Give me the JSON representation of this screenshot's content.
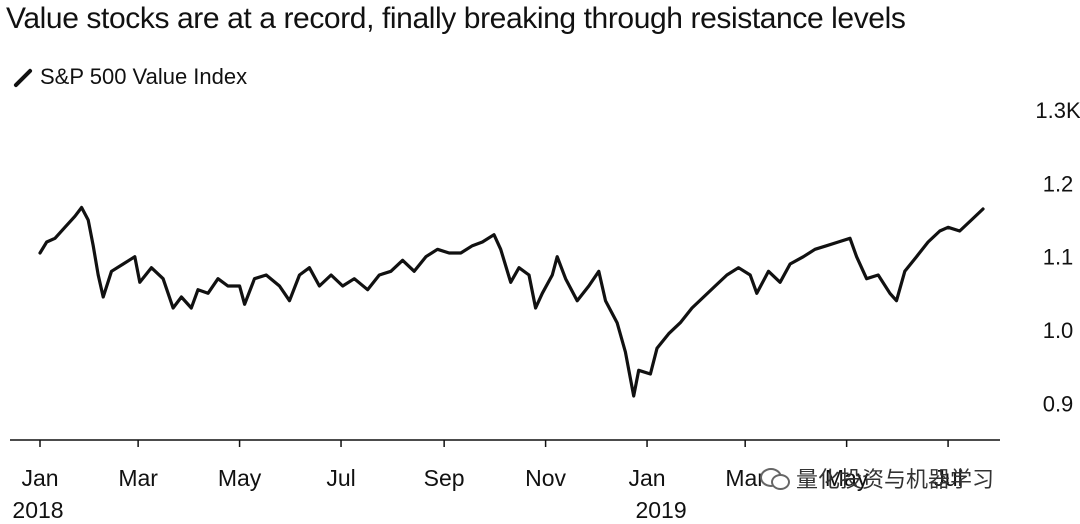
{
  "chart_data": {
    "type": "line",
    "title": "Value stocks are at a record, finally breaking through resistance levels",
    "legend": {
      "position": "top-left",
      "entries": [
        "S&P 500 Value Index"
      ]
    },
    "yaxis": {
      "position": "right",
      "ylim": [
        0.88,
        1.3
      ],
      "ticks": [
        0.9,
        1.0,
        1.1,
        1.2,
        1.3
      ],
      "tick_labels": [
        "0.9",
        "1.0",
        "1.1",
        "1.2",
        "1.3K"
      ]
    },
    "xaxis": {
      "range": [
        "2018-01-01",
        "2019-07-25"
      ],
      "ticks": [
        {
          "date": "2018-01-01",
          "label": "Jan",
          "year": "2018"
        },
        {
          "date": "2018-03-01",
          "label": "Mar",
          "year": ""
        },
        {
          "date": "2018-05-01",
          "label": "May",
          "year": ""
        },
        {
          "date": "2018-07-01",
          "label": "Jul",
          "year": ""
        },
        {
          "date": "2018-09-01",
          "label": "Sep",
          "year": ""
        },
        {
          "date": "2018-11-01",
          "label": "Nov",
          "year": ""
        },
        {
          "date": "2019-01-01",
          "label": "Jan",
          "year": "2019"
        },
        {
          "date": "2019-03-01",
          "label": "Mar",
          "year": ""
        },
        {
          "date": "2019-05-01",
          "label": "May",
          "year": ""
        },
        {
          "date": "2019-07-01",
          "label": "Jul",
          "year": ""
        }
      ]
    },
    "grid": false,
    "series": [
      {
        "name": "S&P 500 Value Index",
        "color": "#111111",
        "points": [
          [
            "2018-01-01",
            1.105
          ],
          [
            "2018-01-05",
            1.12
          ],
          [
            "2018-01-10",
            1.125
          ],
          [
            "2018-01-16",
            1.14
          ],
          [
            "2018-01-22",
            1.155
          ],
          [
            "2018-01-26",
            1.167
          ],
          [
            "2018-01-30",
            1.15
          ],
          [
            "2018-02-02",
            1.115
          ],
          [
            "2018-02-05",
            1.075
          ],
          [
            "2018-02-08",
            1.045
          ],
          [
            "2018-02-13",
            1.08
          ],
          [
            "2018-02-20",
            1.09
          ],
          [
            "2018-02-27",
            1.1
          ],
          [
            "2018-03-02",
            1.065
          ],
          [
            "2018-03-09",
            1.085
          ],
          [
            "2018-03-16",
            1.07
          ],
          [
            "2018-03-22",
            1.03
          ],
          [
            "2018-03-27",
            1.045
          ],
          [
            "2018-04-02",
            1.03
          ],
          [
            "2018-04-06",
            1.055
          ],
          [
            "2018-04-12",
            1.05
          ],
          [
            "2018-04-18",
            1.07
          ],
          [
            "2018-04-24",
            1.06
          ],
          [
            "2018-05-01",
            1.06
          ],
          [
            "2018-05-04",
            1.035
          ],
          [
            "2018-05-10",
            1.07
          ],
          [
            "2018-05-17",
            1.075
          ],
          [
            "2018-05-25",
            1.06
          ],
          [
            "2018-05-31",
            1.04
          ],
          [
            "2018-06-06",
            1.075
          ],
          [
            "2018-06-12",
            1.085
          ],
          [
            "2018-06-18",
            1.06
          ],
          [
            "2018-06-25",
            1.075
          ],
          [
            "2018-07-02",
            1.06
          ],
          [
            "2018-07-09",
            1.07
          ],
          [
            "2018-07-17",
            1.055
          ],
          [
            "2018-07-24",
            1.075
          ],
          [
            "2018-07-31",
            1.08
          ],
          [
            "2018-08-07",
            1.095
          ],
          [
            "2018-08-14",
            1.08
          ],
          [
            "2018-08-21",
            1.1
          ],
          [
            "2018-08-28",
            1.11
          ],
          [
            "2018-09-04",
            1.105
          ],
          [
            "2018-09-11",
            1.105
          ],
          [
            "2018-09-18",
            1.115
          ],
          [
            "2018-09-24",
            1.12
          ],
          [
            "2018-10-01",
            1.13
          ],
          [
            "2018-10-05",
            1.11
          ],
          [
            "2018-10-11",
            1.065
          ],
          [
            "2018-10-16",
            1.085
          ],
          [
            "2018-10-22",
            1.075
          ],
          [
            "2018-10-26",
            1.03
          ],
          [
            "2018-10-30",
            1.05
          ],
          [
            "2018-11-05",
            1.075
          ],
          [
            "2018-11-08",
            1.1
          ],
          [
            "2018-11-13",
            1.07
          ],
          [
            "2018-11-20",
            1.04
          ],
          [
            "2018-11-27",
            1.06
          ],
          [
            "2018-12-03",
            1.08
          ],
          [
            "2018-12-07",
            1.04
          ],
          [
            "2018-12-14",
            1.01
          ],
          [
            "2018-12-19",
            0.97
          ],
          [
            "2018-12-24",
            0.91
          ],
          [
            "2018-12-27",
            0.945
          ],
          [
            "2019-01-03",
            0.94
          ],
          [
            "2019-01-07",
            0.975
          ],
          [
            "2019-01-14",
            0.995
          ],
          [
            "2019-01-21",
            1.01
          ],
          [
            "2019-01-28",
            1.03
          ],
          [
            "2019-02-04",
            1.045
          ],
          [
            "2019-02-11",
            1.06
          ],
          [
            "2019-02-18",
            1.075
          ],
          [
            "2019-02-25",
            1.085
          ],
          [
            "2019-03-04",
            1.075
          ],
          [
            "2019-03-08",
            1.05
          ],
          [
            "2019-03-15",
            1.08
          ],
          [
            "2019-03-22",
            1.065
          ],
          [
            "2019-03-28",
            1.09
          ],
          [
            "2019-04-05",
            1.1
          ],
          [
            "2019-04-12",
            1.11
          ],
          [
            "2019-04-19",
            1.115
          ],
          [
            "2019-04-26",
            1.12
          ],
          [
            "2019-05-03",
            1.125
          ],
          [
            "2019-05-07",
            1.1
          ],
          [
            "2019-05-13",
            1.07
          ],
          [
            "2019-05-20",
            1.075
          ],
          [
            "2019-05-27",
            1.05
          ],
          [
            "2019-05-31",
            1.04
          ],
          [
            "2019-06-05",
            1.08
          ],
          [
            "2019-06-12",
            1.1
          ],
          [
            "2019-06-19",
            1.12
          ],
          [
            "2019-06-26",
            1.135
          ],
          [
            "2019-07-01",
            1.14
          ],
          [
            "2019-07-08",
            1.135
          ],
          [
            "2019-07-15",
            1.15
          ],
          [
            "2019-07-22",
            1.165
          ]
        ]
      }
    ]
  },
  "watermark": {
    "text": "量化投资与机器学习",
    "icon": "wechat-icon"
  }
}
